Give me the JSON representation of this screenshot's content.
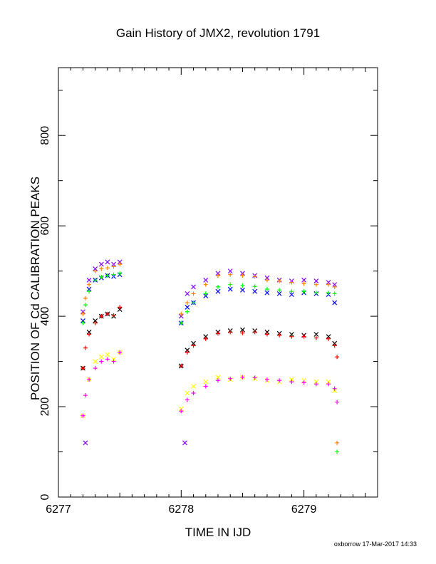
{
  "chart_data": {
    "type": "scatter",
    "title": "Gain History of JMX2, revolution 1791",
    "xlabel": "TIME IN IJD",
    "ylabel": "POSITION OF Cd CALIBRATION PEAKS",
    "xlim": [
      6277.0,
      6279.6
    ],
    "ylim": [
      0,
      950
    ],
    "x_ticks": [
      "6277",
      "6278",
      "6279"
    ],
    "y_ticks": [
      "0",
      "200",
      "400",
      "600",
      "800"
    ],
    "grid": false,
    "series": [
      {
        "color": "#7f00ff",
        "marker": "x",
        "x": [
          6277.2,
          6277.25,
          6277.3,
          6277.35,
          6277.4,
          6277.45,
          6277.5,
          6278.0,
          6278.05,
          6278.1,
          6278.2,
          6278.3,
          6278.4,
          6278.5,
          6278.6,
          6278.7,
          6278.8,
          6278.9,
          6279.0,
          6279.1,
          6279.2,
          6279.25,
          6277.22,
          6278.03
        ],
        "y": [
          410,
          480,
          505,
          515,
          520,
          515,
          520,
          400,
          450,
          465,
          480,
          495,
          500,
          495,
          490,
          485,
          480,
          478,
          480,
          478,
          475,
          470,
          120,
          120
        ]
      },
      {
        "color": "#0000ff",
        "marker": "x",
        "x": [
          6277.2,
          6277.25,
          6277.3,
          6277.35,
          6277.4,
          6277.45,
          6277.5,
          6278.0,
          6278.05,
          6278.1,
          6278.2,
          6278.3,
          6278.4,
          6278.5,
          6278.6,
          6278.7,
          6278.8,
          6278.9,
          6279.0,
          6279.1,
          6279.2,
          6279.25
        ],
        "y": [
          390,
          460,
          480,
          485,
          490,
          488,
          492,
          385,
          420,
          430,
          445,
          455,
          460,
          458,
          455,
          452,
          450,
          448,
          452,
          450,
          448,
          430
        ]
      },
      {
        "color": "#ff8000",
        "marker": "+",
        "x": [
          6277.2,
          6277.22,
          6277.25,
          6277.3,
          6277.35,
          6277.4,
          6277.45,
          6277.5,
          6278.0,
          6278.05,
          6278.1,
          6278.2,
          6278.3,
          6278.4,
          6278.5,
          6278.6,
          6278.7,
          6278.8,
          6278.9,
          6279.0,
          6279.1,
          6279.2,
          6279.25,
          6279.27
        ],
        "y": [
          405,
          440,
          470,
          500,
          505,
          507,
          510,
          515,
          405,
          430,
          450,
          470,
          490,
          492,
          490,
          488,
          480,
          478,
          475,
          472,
          470,
          470,
          465,
          120
        ]
      },
      {
        "color": "#00ff00",
        "marker": "+",
        "x": [
          6277.2,
          6277.22,
          6277.25,
          6277.3,
          6277.35,
          6277.4,
          6277.45,
          6277.5,
          6278.0,
          6278.05,
          6278.1,
          6278.2,
          6278.3,
          6278.4,
          6278.5,
          6278.6,
          6278.7,
          6278.8,
          6278.9,
          6279.0,
          6279.1,
          6279.2,
          6279.25,
          6279.27
        ],
        "y": [
          385,
          425,
          455,
          480,
          487,
          490,
          492,
          495,
          385,
          410,
          430,
          450,
          465,
          470,
          468,
          466,
          460,
          458,
          455,
          455,
          452,
          452,
          450,
          100
        ]
      },
      {
        "color": "#000000",
        "marker": "x",
        "x": [
          6277.2,
          6277.25,
          6277.3,
          6277.35,
          6277.4,
          6277.45,
          6277.5,
          6278.0,
          6278.05,
          6278.1,
          6278.2,
          6278.3,
          6278.4,
          6278.5,
          6278.6,
          6278.7,
          6278.8,
          6278.9,
          6279.0,
          6279.1,
          6279.2,
          6279.25
        ],
        "y": [
          285,
          365,
          390,
          400,
          405,
          400,
          415,
          290,
          325,
          340,
          355,
          365,
          368,
          370,
          368,
          365,
          362,
          360,
          358,
          360,
          355,
          340
        ]
      },
      {
        "color": "#ff0000",
        "marker": "+",
        "x": [
          6277.2,
          6277.22,
          6277.25,
          6277.3,
          6277.35,
          6277.4,
          6277.45,
          6277.5,
          6278.0,
          6278.05,
          6278.1,
          6278.2,
          6278.3,
          6278.4,
          6278.5,
          6278.6,
          6278.7,
          6278.8,
          6278.9,
          6279.0,
          6279.1,
          6279.2,
          6279.25,
          6279.27
        ],
        "y": [
          285,
          330,
          360,
          385,
          400,
          405,
          402,
          420,
          290,
          320,
          335,
          350,
          362,
          365,
          363,
          365,
          360,
          358,
          355,
          355,
          352,
          350,
          335,
          310
        ]
      },
      {
        "color": "#ffff00",
        "marker": "x",
        "x": [
          6277.2,
          6277.25,
          6277.3,
          6277.35,
          6277.4,
          6277.45,
          6277.5,
          6278.0,
          6278.05,
          6278.1,
          6278.2,
          6278.3,
          6278.4,
          6278.5,
          6278.6,
          6278.7,
          6278.8,
          6278.9,
          6279.0,
          6279.1,
          6279.2,
          6279.25
        ],
        "y": [
          180,
          260,
          300,
          310,
          315,
          305,
          320,
          195,
          230,
          245,
          255,
          265,
          260,
          265,
          262,
          258,
          255,
          260,
          258,
          255,
          255,
          235
        ]
      },
      {
        "color": "#ff00ff",
        "marker": "+",
        "x": [
          6277.2,
          6277.22,
          6277.25,
          6277.3,
          6277.35,
          6277.4,
          6277.45,
          6277.5,
          6278.0,
          6278.05,
          6278.1,
          6278.2,
          6278.3,
          6278.4,
          6278.5,
          6278.6,
          6278.7,
          6278.8,
          6278.9,
          6279.0,
          6279.1,
          6279.2,
          6279.25,
          6279.27
        ],
        "y": [
          180,
          225,
          260,
          285,
          300,
          305,
          300,
          320,
          190,
          215,
          230,
          245,
          258,
          262,
          265,
          264,
          260,
          258,
          255,
          253,
          250,
          250,
          240,
          210
        ]
      }
    ]
  },
  "footer": {
    "stamp": "oxborrow 17-Mar-2017 14:33"
  }
}
